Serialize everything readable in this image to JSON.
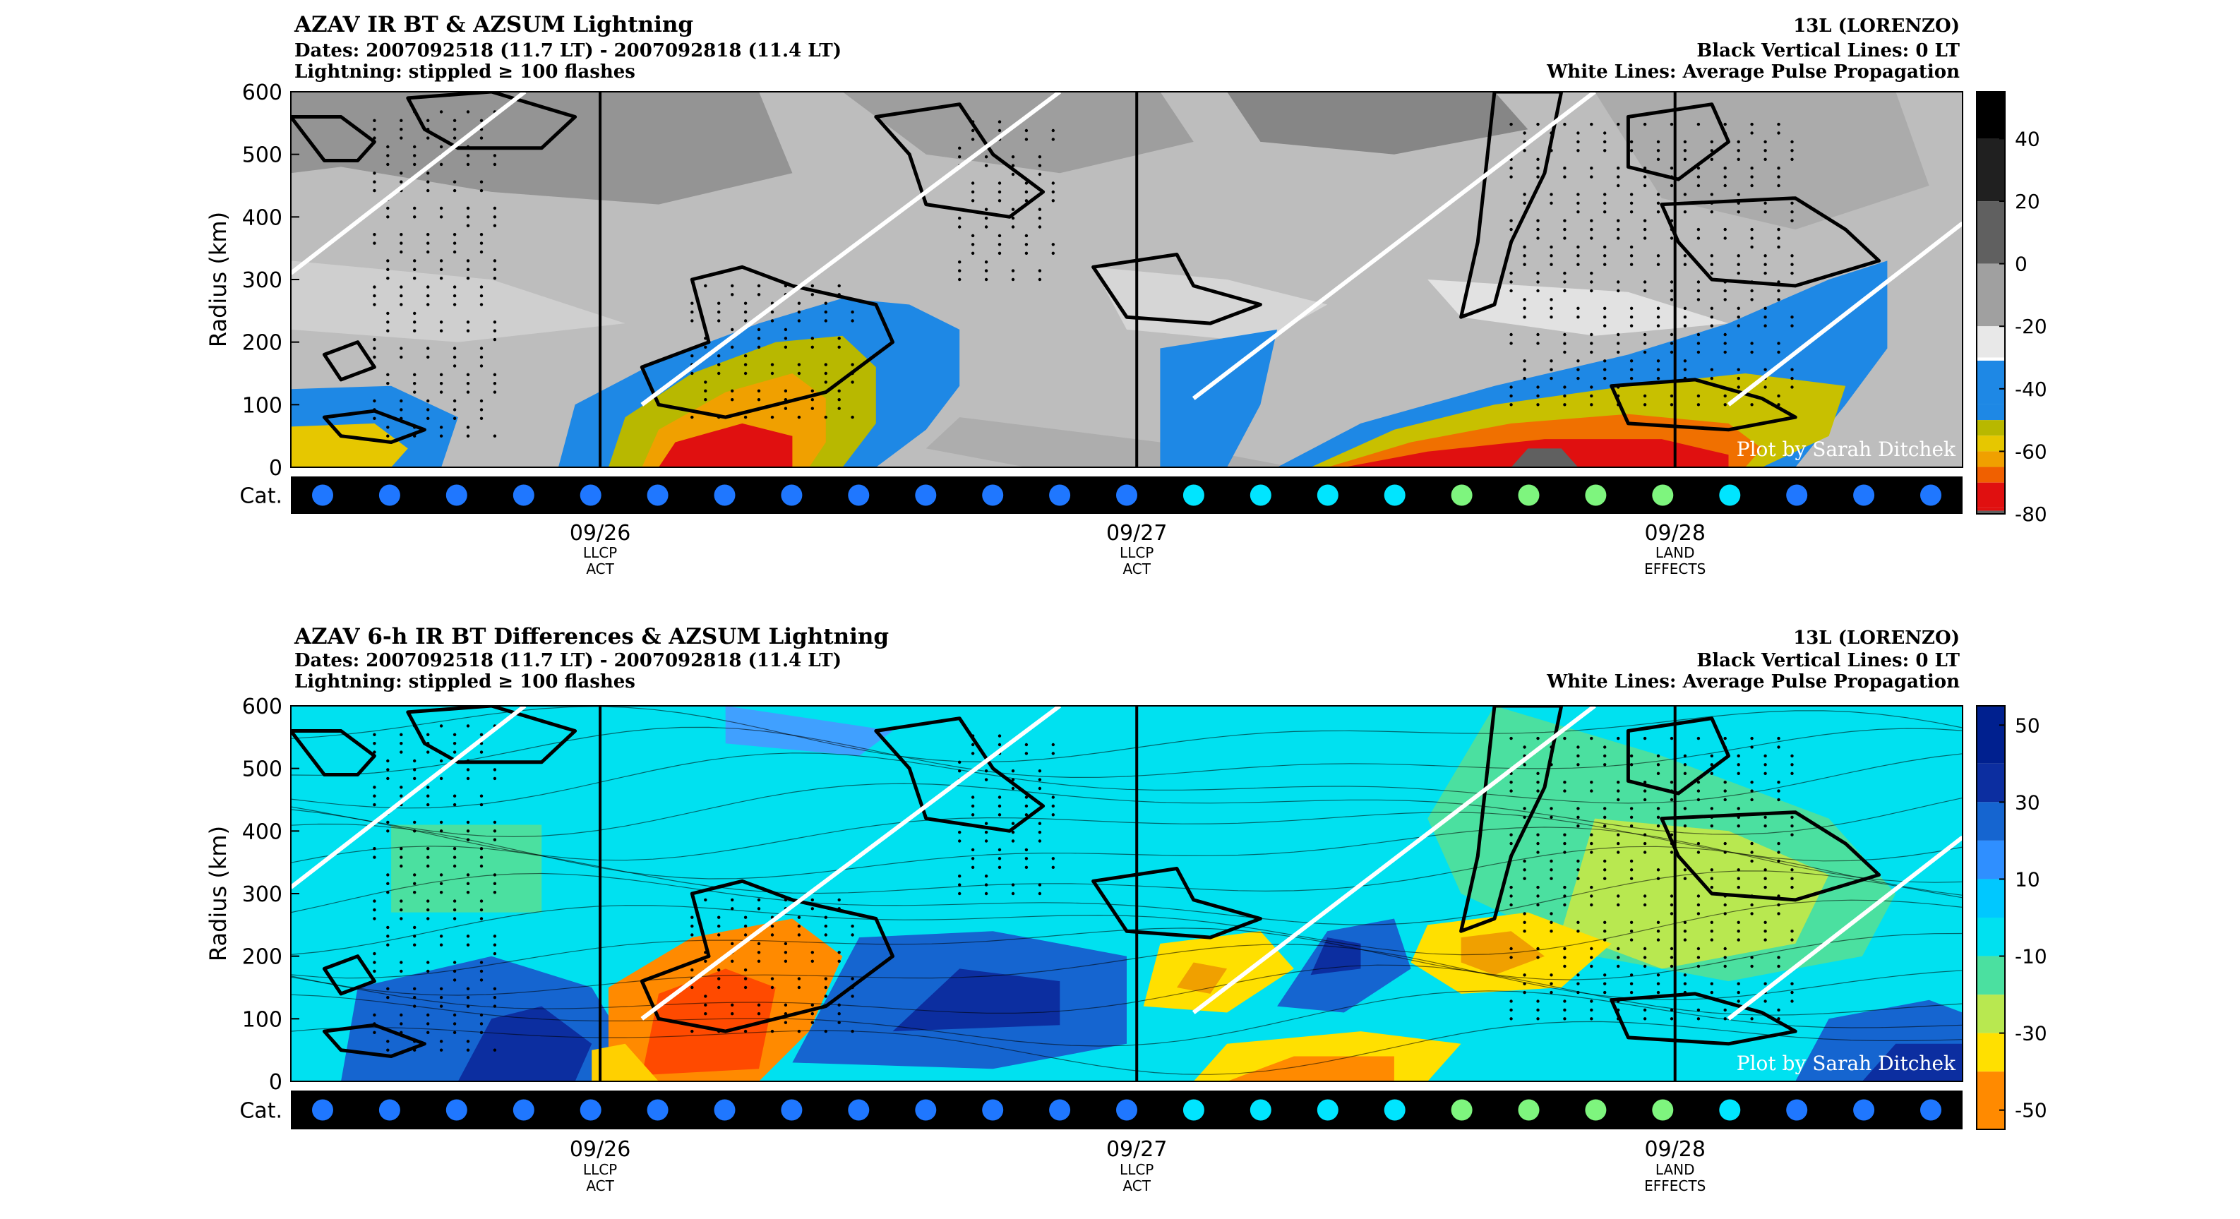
{
  "panels": [
    {
      "title": "AZAV IR BT & AZSUM Lightning",
      "dates_line": "Dates: 2007092518 (11.7 LT) - 2007092818 (11.4 LT)",
      "lightning_line": "Lightning: stippled ≥ 100 flashes",
      "storm": "13L (LORENZO)",
      "black_lines_note": "Black Vertical Lines: 0 LT",
      "white_lines_note": "White Lines: Average Pulse Propagation",
      "ylabel": "Radius (km)",
      "credit": "Plot by Sarah Ditchek",
      "cat_label": "Cat.",
      "colorbar_ticks": [
        "40",
        "20",
        "0",
        "-20",
        "-40",
        "-60",
        "-80"
      ],
      "colorbar_values": [
        40,
        20,
        0,
        -20,
        -40,
        -60,
        -80
      ],
      "colorbar_range": [
        -80,
        55
      ]
    },
    {
      "title": "AZAV 6-h IR BT Differences & AZSUM Lightning",
      "dates_line": "Dates: 2007092518 (11.7 LT) - 2007092818 (11.4 LT)",
      "lightning_line": "Lightning: stippled ≥ 100 flashes",
      "storm": "13L (LORENZO)",
      "black_lines_note": "Black Vertical Lines: 0 LT",
      "white_lines_note": "White Lines: Average Pulse Propagation",
      "ylabel": "Radius (km)",
      "credit": "Plot by Sarah Ditchek",
      "cat_label": "Cat.",
      "colorbar_ticks": [
        "50",
        "30",
        "10",
        "-10",
        "-30",
        "-50"
      ],
      "colorbar_values": [
        50,
        30,
        10,
        -10,
        -30,
        -50
      ],
      "colorbar_range": [
        -55,
        55
      ]
    }
  ],
  "chart_data": [
    {
      "type": "heatmap",
      "title": "AZAV IR BT & AZSUM Lightning",
      "ylabel": "Radius (km)",
      "y_ticks": [
        0,
        100,
        200,
        300,
        400,
        500,
        600
      ],
      "ylim": [
        0,
        600
      ],
      "x_ticks": [
        {
          "label": "09/26",
          "sub": [
            "LLCP",
            "ACT"
          ],
          "pos": 0.185
        },
        {
          "label": "09/27",
          "sub": [
            "LLCP",
            "ACT"
          ],
          "pos": 0.506
        },
        {
          "label": "09/28",
          "sub": [
            "LAND",
            "EFFECTS"
          ],
          "pos": 0.828
        }
      ],
      "categories_colors": [
        "#1f77ff",
        "#1f77ff",
        "#1f77ff",
        "#1f77ff",
        "#1f77ff",
        "#1f77ff",
        "#1f77ff",
        "#1f77ff",
        "#1f77ff",
        "#1f77ff",
        "#1f77ff",
        "#1f77ff",
        "#1f77ff",
        "#00e5ff",
        "#00e5ff",
        "#00e5ff",
        "#00e5ff",
        "#7ef57e",
        "#7ef57e",
        "#7ef57e",
        "#7ef57e",
        "#00e5ff",
        "#1f77ff",
        "#1f77ff",
        "#1f77ff"
      ],
      "colorbar": "gray-to-black above 0, blue at -40, yellow at -55, red at -70"
    },
    {
      "type": "heatmap",
      "title": "AZAV 6-h IR BT Differences & AZSUM Lightning",
      "ylabel": "Radius (km)",
      "y_ticks": [
        0,
        100,
        200,
        300,
        400,
        500,
        600
      ],
      "ylim": [
        0,
        600
      ],
      "x_ticks": [
        {
          "label": "09/26",
          "sub": [
            "LLCP",
            "ACT"
          ],
          "pos": 0.185
        },
        {
          "label": "09/27",
          "sub": [
            "LLCP",
            "ACT"
          ],
          "pos": 0.506
        },
        {
          "label": "09/28",
          "sub": [
            "LAND",
            "EFFECTS"
          ],
          "pos": 0.828
        }
      ],
      "categories_colors": [
        "#1f77ff",
        "#1f77ff",
        "#1f77ff",
        "#1f77ff",
        "#1f77ff",
        "#1f77ff",
        "#1f77ff",
        "#1f77ff",
        "#1f77ff",
        "#1f77ff",
        "#1f77ff",
        "#1f77ff",
        "#1f77ff",
        "#00e5ff",
        "#00e5ff",
        "#00e5ff",
        "#00e5ff",
        "#7ef57e",
        "#7ef57e",
        "#7ef57e",
        "#7ef57e",
        "#00e5ff",
        "#1f77ff",
        "#1f77ff",
        "#1f77ff"
      ],
      "colorbar": "jet colormap from -50 (red) to 50 (dark blue)"
    }
  ]
}
